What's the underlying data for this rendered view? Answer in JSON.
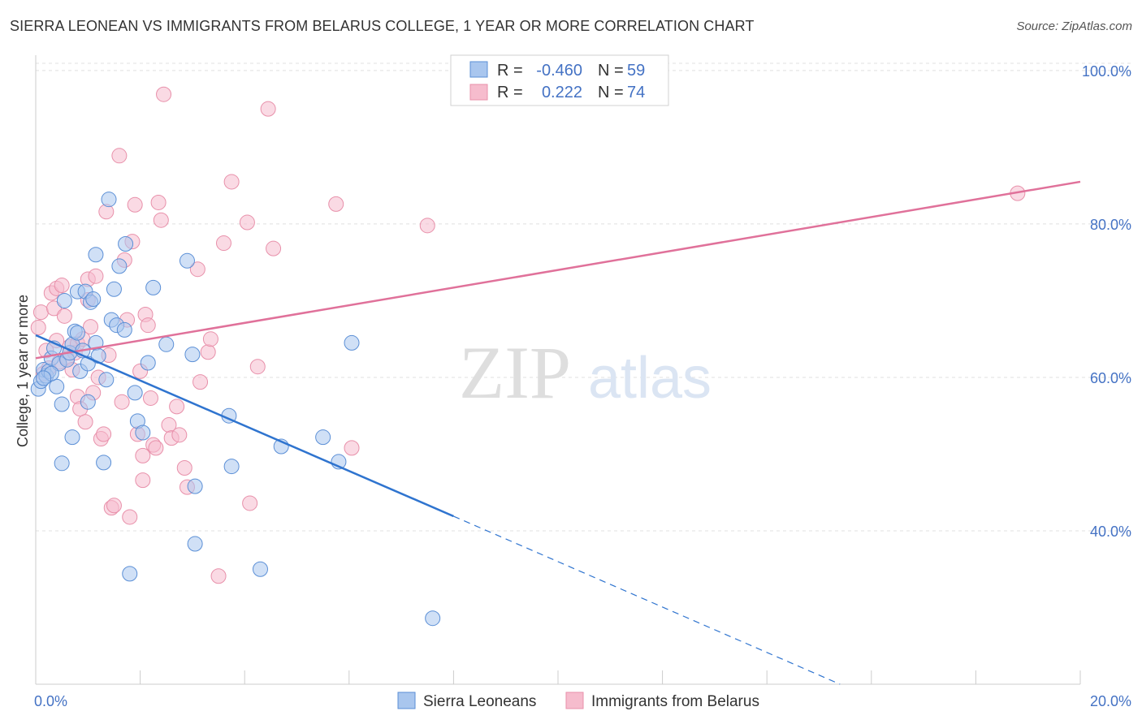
{
  "header": {
    "title": "SIERRA LEONEAN VS IMMIGRANTS FROM BELARUS COLLEGE, 1 YEAR OR MORE CORRELATION CHART",
    "source": "Source: ZipAtlas.com"
  },
  "watermark": {
    "zip": "ZIP",
    "atlas": "atlas"
  },
  "colors": {
    "blue_fill": "#a9c6ee",
    "blue_stroke": "#5b8fd6",
    "blue_line": "#2f74cf",
    "pink_fill": "#f6bccd",
    "pink_stroke": "#e890aa",
    "pink_line": "#e0719a",
    "tick_text": "#4472c4",
    "grid": "#e0e0e0"
  },
  "chart_data": {
    "type": "scatter",
    "title": "SIERRA LEONEAN VS IMMIGRANTS FROM BELARUS COLLEGE, 1 YEAR OR MORE CORRELATION CHART",
    "xlabel": "",
    "ylabel": "College, 1 year or more",
    "xlim": [
      0,
      20
    ],
    "ylim": [
      20,
      102
    ],
    "x_ticks": [
      0,
      2,
      4,
      6,
      8,
      10,
      12,
      14,
      16,
      18,
      20
    ],
    "x_tick_labels": [
      {
        "value": 0,
        "label": "0.0%"
      },
      {
        "value": 20,
        "label": "20.0%"
      }
    ],
    "y_ticks": [
      {
        "value": 40,
        "label": "40.0%"
      },
      {
        "value": 60,
        "label": "60.0%"
      },
      {
        "value": 80,
        "label": "80.0%"
      },
      {
        "value": 100,
        "label": "100.0%"
      }
    ],
    "legend": [
      {
        "series": "Sierra Leoneans",
        "r_label": "R =",
        "r": "-0.460",
        "n_label": "N =",
        "n": "59"
      },
      {
        "series": "Immigrants from Belarus",
        "r_label": "R =",
        "r": "0.222",
        "n_label": "N =",
        "n": "74"
      }
    ],
    "series": [
      {
        "name": "Sierra Leoneans",
        "color": "#a9c6ee",
        "trend": {
          "x0": 0,
          "y0": 65.5,
          "x1": 8,
          "y1": 41.9,
          "dash_to_x": 15.4,
          "dash_to_y": 20
        },
        "points": [
          [
            0.05,
            58.5
          ],
          [
            0.1,
            59.5
          ],
          [
            0.15,
            61.0
          ],
          [
            0.2,
            60.2
          ],
          [
            0.25,
            60.8
          ],
          [
            0.3,
            62.5
          ],
          [
            0.35,
            63.8
          ],
          [
            0.4,
            58.8
          ],
          [
            0.45,
            61.8
          ],
          [
            0.5,
            56.5
          ],
          [
            0.5,
            48.8
          ],
          [
            0.55,
            70.0
          ],
          [
            0.6,
            62.3
          ],
          [
            0.65,
            63.2
          ],
          [
            0.7,
            52.2
          ],
          [
            0.7,
            64.3
          ],
          [
            0.75,
            66.0
          ],
          [
            0.8,
            65.8
          ],
          [
            0.8,
            71.2
          ],
          [
            0.85,
            60.8
          ],
          [
            0.9,
            63.5
          ],
          [
            0.95,
            71.2
          ],
          [
            1.0,
            56.8
          ],
          [
            1.0,
            61.8
          ],
          [
            1.05,
            69.8
          ],
          [
            1.1,
            70.2
          ],
          [
            1.15,
            64.5
          ],
          [
            1.15,
            76.0
          ],
          [
            1.2,
            62.8
          ],
          [
            1.3,
            48.9
          ],
          [
            1.35,
            59.7
          ],
          [
            1.4,
            83.2
          ],
          [
            1.45,
            67.5
          ],
          [
            1.5,
            71.5
          ],
          [
            1.55,
            66.8
          ],
          [
            1.6,
            74.5
          ],
          [
            1.7,
            66.2
          ],
          [
            1.72,
            77.4
          ],
          [
            1.8,
            34.4
          ],
          [
            1.9,
            58.0
          ],
          [
            1.95,
            54.3
          ],
          [
            2.05,
            52.8
          ],
          [
            2.15,
            61.9
          ],
          [
            2.25,
            71.7
          ],
          [
            2.5,
            64.3
          ],
          [
            2.9,
            75.2
          ],
          [
            3.0,
            63.0
          ],
          [
            3.05,
            38.3
          ],
          [
            3.05,
            45.8
          ],
          [
            3.7,
            55.0
          ],
          [
            3.75,
            48.4
          ],
          [
            4.3,
            35.0
          ],
          [
            4.7,
            51.0
          ],
          [
            5.5,
            52.2
          ],
          [
            5.8,
            49.0
          ],
          [
            6.05,
            64.5
          ],
          [
            7.6,
            28.6
          ],
          [
            0.3,
            60.5
          ],
          [
            0.15,
            59.9
          ]
        ]
      },
      {
        "name": "Immigrants from Belarus",
        "color": "#f6bccd",
        "trend": {
          "x0": 0,
          "y0": 62.5,
          "x1": 20,
          "y1": 85.5
        },
        "points": [
          [
            0.05,
            66.5
          ],
          [
            0.1,
            68.5
          ],
          [
            0.15,
            60.5
          ],
          [
            0.2,
            63.5
          ],
          [
            0.25,
            61.2
          ],
          [
            0.3,
            71.0
          ],
          [
            0.35,
            69.0
          ],
          [
            0.4,
            71.6
          ],
          [
            0.45,
            62.0
          ],
          [
            0.5,
            72.0
          ],
          [
            0.55,
            68.0
          ],
          [
            0.6,
            62.5
          ],
          [
            0.65,
            64.0
          ],
          [
            0.7,
            61.0
          ],
          [
            0.75,
            63.2
          ],
          [
            0.8,
            57.5
          ],
          [
            0.8,
            64.4
          ],
          [
            0.85,
            55.9
          ],
          [
            0.9,
            65.0
          ],
          [
            0.95,
            54.2
          ],
          [
            1.0,
            72.8
          ],
          [
            1.0,
            70.1
          ],
          [
            1.05,
            66.6
          ],
          [
            1.1,
            58.0
          ],
          [
            1.15,
            73.2
          ],
          [
            1.2,
            60.0
          ],
          [
            1.25,
            52.0
          ],
          [
            1.3,
            52.6
          ],
          [
            1.35,
            81.6
          ],
          [
            1.4,
            62.9
          ],
          [
            1.45,
            43.0
          ],
          [
            1.5,
            43.3
          ],
          [
            1.6,
            88.9
          ],
          [
            1.65,
            56.8
          ],
          [
            1.7,
            75.3
          ],
          [
            1.75,
            67.5
          ],
          [
            1.8,
            41.8
          ],
          [
            1.85,
            77.7
          ],
          [
            1.9,
            82.5
          ],
          [
            1.95,
            52.6
          ],
          [
            2.0,
            60.8
          ],
          [
            2.05,
            49.8
          ],
          [
            2.05,
            46.6
          ],
          [
            2.1,
            68.2
          ],
          [
            2.15,
            66.8
          ],
          [
            2.2,
            57.3
          ],
          [
            2.25,
            51.2
          ],
          [
            2.3,
            50.8
          ],
          [
            2.35,
            82.8
          ],
          [
            2.4,
            80.5
          ],
          [
            2.45,
            96.9
          ],
          [
            2.55,
            53.8
          ],
          [
            2.6,
            52.1
          ],
          [
            2.7,
            56.2
          ],
          [
            2.75,
            52.5
          ],
          [
            2.85,
            48.2
          ],
          [
            2.9,
            45.7
          ],
          [
            3.1,
            74.1
          ],
          [
            3.15,
            59.4
          ],
          [
            3.3,
            63.3
          ],
          [
            3.35,
            65.0
          ],
          [
            3.5,
            34.1
          ],
          [
            3.6,
            77.5
          ],
          [
            3.75,
            85.5
          ],
          [
            4.05,
            80.2
          ],
          [
            4.1,
            43.6
          ],
          [
            4.25,
            61.4
          ],
          [
            4.45,
            95.0
          ],
          [
            4.55,
            76.8
          ],
          [
            5.75,
            82.6
          ],
          [
            6.05,
            50.8
          ],
          [
            7.5,
            79.8
          ],
          [
            18.8,
            84.0
          ],
          [
            0.4,
            64.8
          ]
        ]
      }
    ]
  },
  "bottom_legend": [
    {
      "label": "Sierra Leoneans",
      "color": "#a9c6ee"
    },
    {
      "label": "Immigrants from Belarus",
      "color": "#f6bccd"
    }
  ]
}
